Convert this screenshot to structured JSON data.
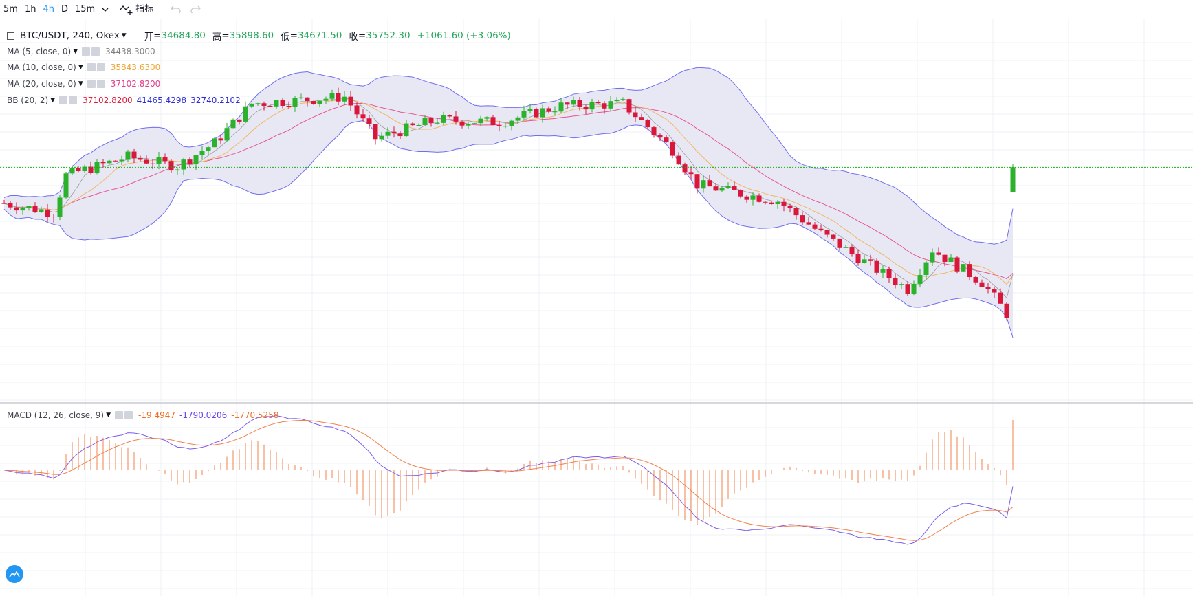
{
  "toolbar": {
    "intervals": [
      "5m",
      "1h",
      "4h",
      "D",
      "15m"
    ],
    "active_interval": "4h",
    "indicators_label": "指标",
    "undo_icon": "undo-icon",
    "redo_icon": "redo-icon"
  },
  "symbol": {
    "title": "BTC/USDT, 240, Okex",
    "open_label": "开",
    "open": "34684.80",
    "high_label": "高",
    "high": "35898.60",
    "low_label": "低",
    "low": "34671.50",
    "close_label": "收",
    "close": "35752.30",
    "change": "+1061.60 (+3.06%)"
  },
  "indicators": [
    {
      "name": "MA (5, close, 0)",
      "values": [
        "34438.3000"
      ],
      "colors": [
        "#7f7f7f"
      ]
    },
    {
      "name": "MA (10, close, 0)",
      "values": [
        "35843.6300"
      ],
      "colors": [
        "#f0a431"
      ]
    },
    {
      "name": "MA (20, close, 0)",
      "values": [
        "37102.8200"
      ],
      "colors": [
        "#e23e8c"
      ]
    },
    {
      "name": "BB (20, 2)",
      "values": [
        "37102.8200",
        "41465.4298",
        "32740.2102"
      ],
      "colors": [
        "#e0213e",
        "#2d2bd6",
        "#2d2bd6"
      ]
    }
  ],
  "macd": {
    "name": "MACD (12, 26, close, 9)",
    "values": [
      "-19.4947",
      "-1790.0206",
      "-1770.5258"
    ],
    "colors": [
      "#f26b24",
      "#6c43ef",
      "#f26b24"
    ]
  },
  "colors": {
    "up": "#2bb12b",
    "down": "#d9173b",
    "bb_fill": "#e6e6f3",
    "bb_line": "#6f6ff0",
    "ma5": "#9a9a9a",
    "ma10": "#f2b661",
    "ma20": "#e8558c",
    "macd_line": "#7a5cf0",
    "signal_line": "#f2804a",
    "hist": "#f2804a",
    "price_line": "#18b018",
    "grid": "#eef1f5"
  },
  "chart_data": {
    "type": "candlestick",
    "timeframe": "4h",
    "last_close": 35752.3,
    "candles": []
  }
}
